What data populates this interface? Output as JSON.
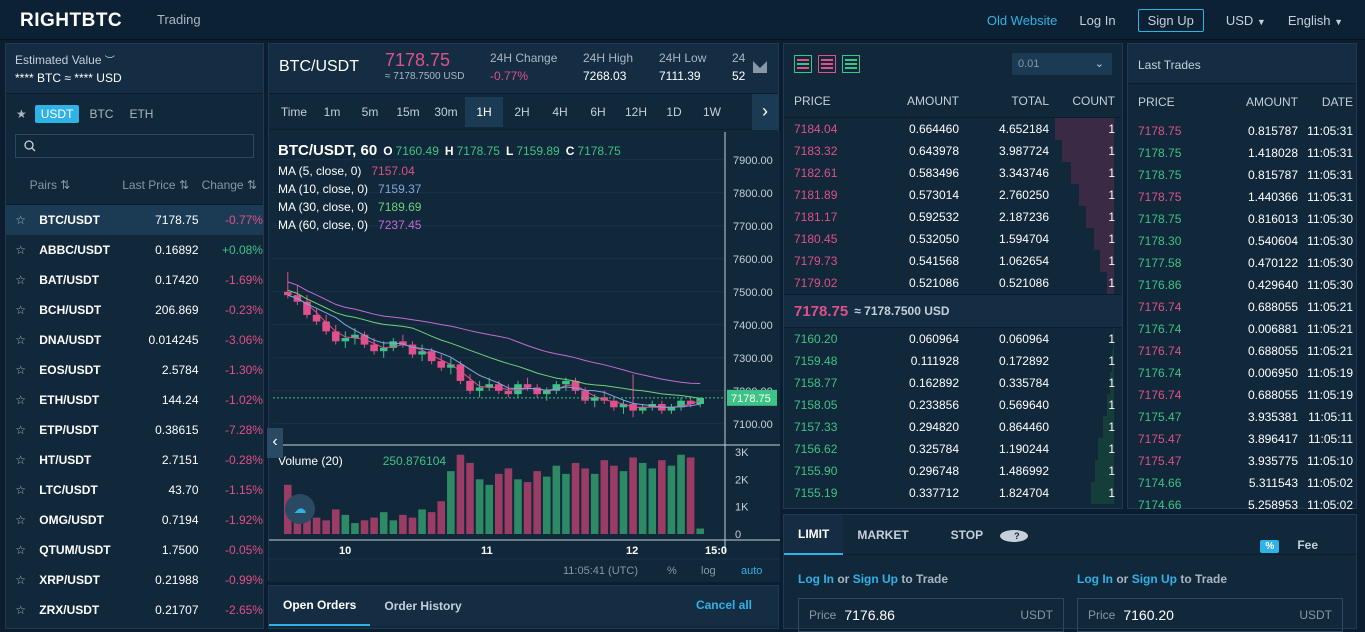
{
  "header": {
    "logo": "RIGHTBTC",
    "trading": "Trading",
    "old_website": "Old Website",
    "login": "Log In",
    "signup": "Sign Up",
    "currency": "USD",
    "language": "English"
  },
  "left": {
    "est_title": "Estimated Value",
    "est_value": "**** BTC ≈ **** USD",
    "tabs": [
      "USDT",
      "BTC",
      "ETH"
    ],
    "cols": [
      "Pairs",
      "Last Price",
      "Change"
    ],
    "pairs": [
      {
        "name": "BTC/USDT",
        "price": "7178.75",
        "change": "-0.77%",
        "dir": "neg"
      },
      {
        "name": "ABBC/USDT",
        "price": "0.16892",
        "change": "+0.08%",
        "dir": "pos"
      },
      {
        "name": "BAT/USDT",
        "price": "0.17420",
        "change": "-1.69%",
        "dir": "neg"
      },
      {
        "name": "BCH/USDT",
        "price": "206.869",
        "change": "-0.23%",
        "dir": "neg"
      },
      {
        "name": "DNA/USDT",
        "price": "0.014245",
        "change": "-3.06%",
        "dir": "neg"
      },
      {
        "name": "EOS/USDT",
        "price": "2.5784",
        "change": "-1.30%",
        "dir": "neg"
      },
      {
        "name": "ETH/USDT",
        "price": "144.24",
        "change": "-1.02%",
        "dir": "neg"
      },
      {
        "name": "ETP/USDT",
        "price": "0.38615",
        "change": "-7.28%",
        "dir": "neg"
      },
      {
        "name": "HT/USDT",
        "price": "2.7151",
        "change": "-0.28%",
        "dir": "neg"
      },
      {
        "name": "LTC/USDT",
        "price": "43.70",
        "change": "-1.15%",
        "dir": "neg"
      },
      {
        "name": "OMG/USDT",
        "price": "0.7194",
        "change": "-1.92%",
        "dir": "neg"
      },
      {
        "name": "QTUM/USDT",
        "price": "1.7500",
        "change": "-0.05%",
        "dir": "neg"
      },
      {
        "name": "XRP/USDT",
        "price": "0.21988",
        "change": "-0.99%",
        "dir": "neg"
      },
      {
        "name": "ZRX/USDT",
        "price": "0.21707",
        "change": "-2.65%",
        "dir": "neg"
      }
    ]
  },
  "ticker": {
    "symbol": "BTC/USDT",
    "price": "7178.75",
    "price_usd": "≈ 7178.7500 USD",
    "change_label": "24H Change",
    "change": "-0.77%",
    "high_label": "24H High",
    "high": "7268.03",
    "low_label": "24H Low",
    "low": "7111.39",
    "vol_label": "24",
    "vol": "52"
  },
  "timeframes": [
    "Time",
    "1m",
    "5m",
    "15m",
    "30m",
    "1H",
    "2H",
    "4H",
    "6H",
    "12H",
    "1D",
    "1W"
  ],
  "chart": {
    "title": "BTC/USDT, 60",
    "o": "7160.49",
    "h": "7178.75",
    "l": "7159.89",
    "c": "7178.75",
    "ma": [
      {
        "label": "MA (5, close, 0)",
        "value": "7157.04",
        "color": "#e0508a"
      },
      {
        "label": "MA (10, close, 0)",
        "value": "7159.37",
        "color": "#7fa8e0"
      },
      {
        "label": "MA (30, close, 0)",
        "value": "7189.69",
        "color": "#6fd37a"
      },
      {
        "label": "MA (60, close, 0)",
        "value": "7237.45",
        "color": "#c46bd6"
      }
    ],
    "yticks": [
      "7900.00",
      "7800.00",
      "7700.00",
      "7600.00",
      "7500.00",
      "7400.00",
      "7300.00",
      "7200.00",
      "7100.00"
    ],
    "last_tag": "7178.75",
    "volume_label": "Volume (20)",
    "volume_value": "250.876104",
    "vticks": [
      "3K",
      "2K",
      "1K",
      "0"
    ],
    "xticks": [
      "10",
      "11",
      "12",
      "15:0"
    ],
    "footer_time": "11:05:41 (UTC)",
    "footer_pct": "%",
    "footer_log": "log",
    "footer_auto": "auto"
  },
  "chart_data": {
    "type": "candlestick",
    "y_range": [
      7060,
      7960
    ],
    "candles": [
      [
        7500,
        7560,
        7480,
        7490
      ],
      [
        7490,
        7520,
        7460,
        7470
      ],
      [
        7470,
        7490,
        7420,
        7430
      ],
      [
        7430,
        7450,
        7400,
        7410
      ],
      [
        7410,
        7430,
        7370,
        7380
      ],
      [
        7380,
        7400,
        7340,
        7350
      ],
      [
        7350,
        7380,
        7330,
        7360
      ],
      [
        7360,
        7390,
        7340,
        7370
      ],
      [
        7370,
        7380,
        7330,
        7340
      ],
      [
        7340,
        7360,
        7310,
        7320
      ],
      [
        7320,
        7350,
        7300,
        7330
      ],
      [
        7330,
        7360,
        7320,
        7350
      ],
      [
        7350,
        7370,
        7330,
        7340
      ],
      [
        7340,
        7350,
        7300,
        7310
      ],
      [
        7310,
        7340,
        7290,
        7320
      ],
      [
        7320,
        7330,
        7280,
        7290
      ],
      [
        7290,
        7310,
        7260,
        7270
      ],
      [
        7270,
        7300,
        7250,
        7280
      ],
      [
        7280,
        7290,
        7220,
        7230
      ],
      [
        7230,
        7250,
        7190,
        7200
      ],
      [
        7200,
        7230,
        7180,
        7210
      ],
      [
        7210,
        7240,
        7200,
        7220
      ],
      [
        7220,
        7230,
        7190,
        7200
      ],
      [
        7200,
        7220,
        7180,
        7190
      ],
      [
        7190,
        7230,
        7180,
        7220
      ],
      [
        7220,
        7240,
        7200,
        7210
      ],
      [
        7210,
        7220,
        7180,
        7190
      ],
      [
        7190,
        7210,
        7170,
        7200
      ],
      [
        7200,
        7230,
        7190,
        7220
      ],
      [
        7220,
        7240,
        7200,
        7230
      ],
      [
        7230,
        7240,
        7190,
        7200
      ],
      [
        7200,
        7210,
        7160,
        7170
      ],
      [
        7170,
        7190,
        7150,
        7180
      ],
      [
        7180,
        7200,
        7160,
        7170
      ],
      [
        7170,
        7180,
        7140,
        7150
      ],
      [
        7150,
        7170,
        7130,
        7160
      ],
      [
        7160,
        7250,
        7120,
        7140
      ],
      [
        7140,
        7160,
        7130,
        7150
      ],
      [
        7150,
        7170,
        7140,
        7160
      ],
      [
        7160,
        7170,
        7130,
        7140
      ],
      [
        7140,
        7160,
        7130,
        7150
      ],
      [
        7150,
        7180,
        7140,
        7170
      ],
      [
        7170,
        7180,
        7150,
        7160
      ],
      [
        7160,
        7180,
        7150,
        7178
      ]
    ],
    "volumes": [
      1800,
      900,
      700,
      600,
      500,
      900,
      700,
      400,
      500,
      600,
      800,
      500,
      700,
      600,
      900,
      800,
      1200,
      2300,
      2900,
      2600,
      2000,
      1800,
      2200,
      2400,
      2000,
      1900,
      2300,
      2100,
      2500,
      2200,
      2600,
      2400,
      2200,
      2700,
      2500,
      2300,
      2800,
      2600,
      2400,
      2700,
      2500,
      2900,
      2800,
      200
    ]
  },
  "book": {
    "precision": "0.01",
    "cols": [
      "PRICE",
      "AMOUNT",
      "TOTAL",
      "COUNT"
    ],
    "asks": [
      {
        "p": "7184.04",
        "a": "0.664460",
        "t": "4.652184",
        "c": "1",
        "w": 0.99
      },
      {
        "p": "7183.32",
        "a": "0.643978",
        "t": "3.987724",
        "c": "1",
        "w": 0.86
      },
      {
        "p": "7182.61",
        "a": "0.583496",
        "t": "3.343746",
        "c": "1",
        "w": 0.72
      },
      {
        "p": "7181.89",
        "a": "0.573014",
        "t": "2.760250",
        "c": "1",
        "w": 0.59
      },
      {
        "p": "7181.17",
        "a": "0.592532",
        "t": "2.187236",
        "c": "1",
        "w": 0.47
      },
      {
        "p": "7180.45",
        "a": "0.532050",
        "t": "1.594704",
        "c": "1",
        "w": 0.34
      },
      {
        "p": "7179.73",
        "a": "0.541568",
        "t": "1.062654",
        "c": "1",
        "w": 0.23
      },
      {
        "p": "7179.02",
        "a": "0.521086",
        "t": "0.521086",
        "c": "1",
        "w": 0.11
      }
    ],
    "mid_price": "7178.75",
    "mid_usd": "≈ 7178.7500 USD",
    "bids": [
      {
        "p": "7160.20",
        "a": "0.060964",
        "t": "0.060964",
        "c": "1",
        "w": 0.01
      },
      {
        "p": "7159.48",
        "a": "0.111928",
        "t": "0.172892",
        "c": "1",
        "w": 0.04
      },
      {
        "p": "7158.77",
        "a": "0.162892",
        "t": "0.335784",
        "c": "1",
        "w": 0.07
      },
      {
        "p": "7158.05",
        "a": "0.233856",
        "t": "0.569640",
        "c": "1",
        "w": 0.12
      },
      {
        "p": "7157.33",
        "a": "0.294820",
        "t": "0.864460",
        "c": "1",
        "w": 0.19
      },
      {
        "p": "7156.62",
        "a": "0.325784",
        "t": "1.190244",
        "c": "1",
        "w": 0.26
      },
      {
        "p": "7155.90",
        "a": "0.296748",
        "t": "1.486992",
        "c": "1",
        "w": 0.32
      },
      {
        "p": "7155.19",
        "a": "0.337712",
        "t": "1.824704",
        "c": "1",
        "w": 0.39
      }
    ]
  },
  "trades": {
    "title": "Last Trades",
    "cols": [
      "PRICE",
      "AMOUNT",
      "DATE"
    ],
    "rows": [
      {
        "p": "7178.75",
        "a": "0.815787",
        "d": "11:05:31",
        "dir": "neg"
      },
      {
        "p": "7178.75",
        "a": "1.418028",
        "d": "11:05:31",
        "dir": "pos"
      },
      {
        "p": "7178.75",
        "a": "0.815787",
        "d": "11:05:31",
        "dir": "pos"
      },
      {
        "p": "7178.75",
        "a": "1.440366",
        "d": "11:05:31",
        "dir": "neg"
      },
      {
        "p": "7178.75",
        "a": "0.816013",
        "d": "11:05:30",
        "dir": "pos"
      },
      {
        "p": "7178.30",
        "a": "0.540604",
        "d": "11:05:30",
        "dir": "pos"
      },
      {
        "p": "7177.58",
        "a": "0.470122",
        "d": "11:05:30",
        "dir": "pos"
      },
      {
        "p": "7176.86",
        "a": "0.429640",
        "d": "11:05:30",
        "dir": "pos"
      },
      {
        "p": "7176.74",
        "a": "0.688055",
        "d": "11:05:21",
        "dir": "neg"
      },
      {
        "p": "7176.74",
        "a": "0.006881",
        "d": "11:05:21",
        "dir": "pos"
      },
      {
        "p": "7176.74",
        "a": "0.688055",
        "d": "11:05:21",
        "dir": "neg"
      },
      {
        "p": "7176.74",
        "a": "0.006950",
        "d": "11:05:19",
        "dir": "pos"
      },
      {
        "p": "7176.74",
        "a": "0.688055",
        "d": "11:05:19",
        "dir": "neg"
      },
      {
        "p": "7175.47",
        "a": "3.935381",
        "d": "11:05:11",
        "dir": "pos"
      },
      {
        "p": "7175.47",
        "a": "3.896417",
        "d": "11:05:11",
        "dir": "neg"
      },
      {
        "p": "7175.47",
        "a": "3.935775",
        "d": "11:05:10",
        "dir": "neg"
      },
      {
        "p": "7174.66",
        "a": "5.311543",
        "d": "11:05:02",
        "dir": "pos"
      },
      {
        "p": "7174.66",
        "a": "5.258953",
        "d": "11:05:02",
        "dir": "pos"
      }
    ]
  },
  "form": {
    "tabs": [
      "LIMIT",
      "MARKET",
      "STOP"
    ],
    "fee_badge": "%",
    "fee": "Fee",
    "login": "Log In",
    "or": "or",
    "signup": "Sign Up",
    "to_trade": "to Trade",
    "price_label": "Price",
    "buy_price": "7176.86",
    "sell_price": "7160.20",
    "unit": "USDT"
  },
  "orders": {
    "tabs": [
      "Open Orders",
      "Order History"
    ],
    "cancel_all": "Cancel all"
  }
}
